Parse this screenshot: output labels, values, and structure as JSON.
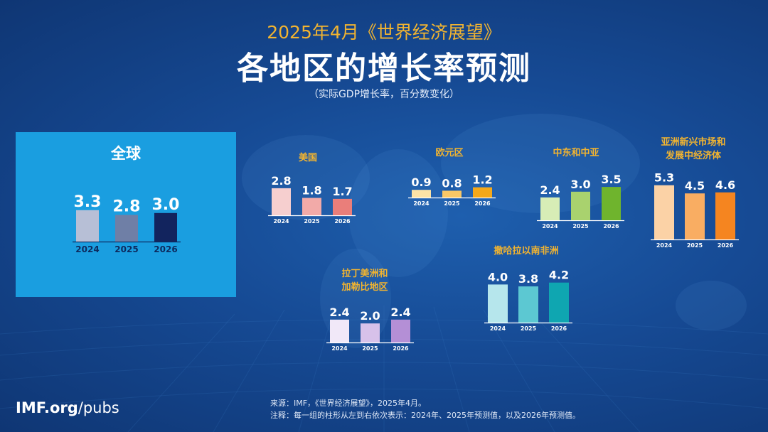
{
  "header": {
    "super_title": "2025年4月《世界经济展望》",
    "title": "各地区的增长率预测",
    "subtitle": "（实际GDP增长率，百分数变化）"
  },
  "chart_data": [
    {
      "type": "bar",
      "id": "global",
      "title": "全球",
      "categories": [
        "2024",
        "2025",
        "2026"
      ],
      "values": [
        3.3,
        2.8,
        3.0
      ],
      "colors": [
        "#b7bfd6",
        "#6f7fa6",
        "#12245e"
      ]
    },
    {
      "type": "bar",
      "id": "us",
      "title": "美国",
      "categories": [
        "2024",
        "2025",
        "2026"
      ],
      "values": [
        2.8,
        1.8,
        1.7
      ],
      "colors": [
        "#f6cfcf",
        "#f2aaa8",
        "#ea7e7a"
      ]
    },
    {
      "type": "bar",
      "id": "euro",
      "title": "欧元区",
      "categories": [
        "2024",
        "2025",
        "2026"
      ],
      "values": [
        0.9,
        0.8,
        1.2
      ],
      "colors": [
        "#fde3a6",
        "#f9c766",
        "#f4a81a"
      ]
    },
    {
      "type": "bar",
      "id": "mideast",
      "title": "中东和中亚",
      "categories": [
        "2024",
        "2025",
        "2026"
      ],
      "values": [
        2.4,
        3.0,
        3.5
      ],
      "colors": [
        "#d7edb6",
        "#a9d26e",
        "#6fb42d"
      ]
    },
    {
      "type": "bar",
      "id": "asia",
      "title": "亚洲新兴市场和发展中经济体",
      "title_lines": [
        "亚洲新兴市场和",
        "发展中经济体"
      ],
      "categories": [
        "2024",
        "2025",
        "2026"
      ],
      "values": [
        5.3,
        4.5,
        4.6
      ],
      "colors": [
        "#fbd2a6",
        "#f9ad62",
        "#f58520"
      ]
    },
    {
      "type": "bar",
      "id": "latam",
      "title": "拉丁美洲和加勒比地区",
      "title_lines": [
        "拉丁美洲和",
        "加勒比地区"
      ],
      "categories": [
        "2024",
        "2025",
        "2026"
      ],
      "values": [
        2.4,
        2.0,
        2.4
      ],
      "colors": [
        "#f1e8f8",
        "#d7c1ea",
        "#b48fd6"
      ]
    },
    {
      "type": "bar",
      "id": "ssa",
      "title": "撒哈拉以南非洲",
      "categories": [
        "2024",
        "2025",
        "2026"
      ],
      "values": [
        4.0,
        3.8,
        4.2
      ],
      "colors": [
        "#b6e6ec",
        "#5cc8d2",
        "#0fa6b1"
      ]
    }
  ],
  "footer": {
    "logo_bold": "IMF.org",
    "logo_rest": "/pubs",
    "source": "来源：IMF，《世界经济展望》，2025年4月。",
    "note": "注释：每一组的柱形从左到右依次表示：2024年、2025年预测值，以及2026年预测值。"
  }
}
